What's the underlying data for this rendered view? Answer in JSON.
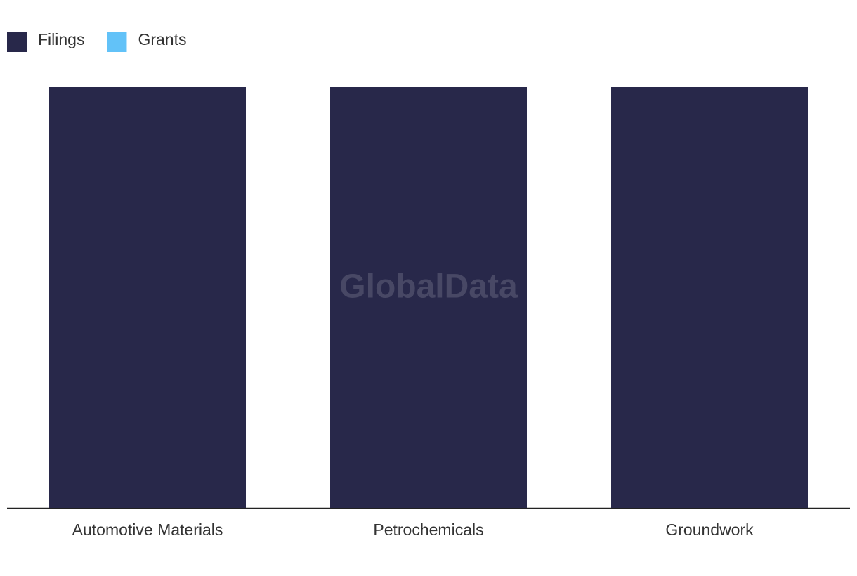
{
  "chart_data": {
    "type": "bar",
    "stacked": true,
    "watermark": "GlobalData",
    "categories": [
      "Automotive Materials",
      "Petrochemicals",
      "Groundwork"
    ],
    "series": [
      {
        "name": "Filings",
        "color": "#28284a",
        "values": [
          100,
          100,
          100
        ]
      },
      {
        "name": "Grants",
        "color": "#62c2f8",
        "values": [
          0,
          0,
          0
        ]
      }
    ],
    "ylim": [
      0,
      100
    ]
  }
}
